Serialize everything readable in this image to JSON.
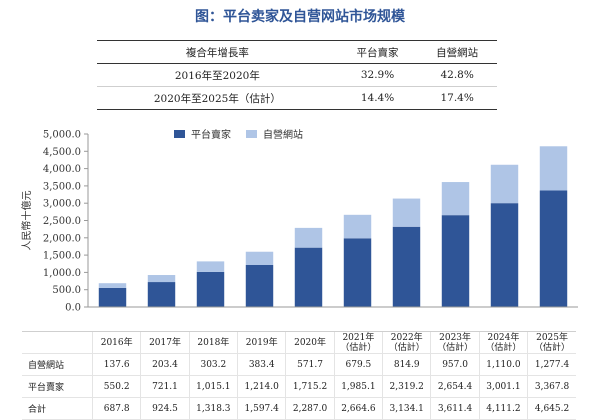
{
  "title": "图：平台卖家及自营网站市场规模",
  "cagr_table": {
    "headers": [
      "複合年增長率",
      "平台賣家",
      "自營網站"
    ],
    "rows": [
      {
        "label": "2016年至2020年",
        "platform": "32.9%",
        "self": "42.8%"
      },
      {
        "label": "2020年至2025年（估計）",
        "platform": "14.4%",
        "self": "17.4%"
      }
    ]
  },
  "colors": {
    "platform": "#2f5597",
    "self": "#afc5e6",
    "title": "#2f5597"
  },
  "chart_data": {
    "type": "bar",
    "stacked": true,
    "categories": [
      "2016年",
      "2017年",
      "2018年",
      "2019年",
      "2020年",
      "2021年（估計）",
      "2022年（估計）",
      "2023年（估計）",
      "2024年（估計）",
      "2025年（估計）"
    ],
    "category_labels": [
      "2016年",
      "2017年",
      "2018年",
      "2019年",
      "2020年",
      "2021年\n（估計）",
      "2022年\n（估計）",
      "2023年\n（估計）",
      "2024年\n（估計）",
      "2025年\n（估計）"
    ],
    "series": [
      {
        "name": "平台賣家",
        "values": [
          550.2,
          721.1,
          1015.1,
          1214.0,
          1715.2,
          1985.1,
          2319.2,
          2654.4,
          3001.1,
          3367.8
        ]
      },
      {
        "name": "自營網站",
        "values": [
          137.6,
          203.4,
          303.2,
          383.4,
          571.7,
          679.5,
          814.9,
          957.0,
          1110.0,
          1277.4
        ]
      }
    ],
    "ylabel": "人民幣十億元",
    "ylim": [
      0,
      5000
    ],
    "yticks": [
      "0.0",
      "500.0",
      "1,000.0",
      "1,500.0",
      "2,000.0",
      "2,500.0",
      "3,000.0",
      "3,500.0",
      "4,000.0",
      "4,500.0",
      "5,000.0"
    ],
    "legend_position": "top"
  },
  "data_table": {
    "rows": [
      {
        "label": "自營網站",
        "values": [
          "137.6",
          "203.4",
          "303.2",
          "383.4",
          "571.7",
          "679.5",
          "814.9",
          "957.0",
          "1,110.0",
          "1,277.4"
        ]
      },
      {
        "label": "平台賣家",
        "values": [
          "550.2",
          "721.1",
          "1,015.1",
          "1,214.0",
          "1,715.2",
          "1,985.1",
          "2,319.2",
          "2,654.4",
          "3,001.1",
          "3,367.8"
        ]
      },
      {
        "label": "合計",
        "values": [
          "687.8",
          "924.5",
          "1,318.3",
          "1,597.4",
          "2,287.0",
          "2,664.6",
          "3,134.1",
          "3,611.4",
          "4,111.2",
          "4,645.2"
        ]
      }
    ]
  }
}
